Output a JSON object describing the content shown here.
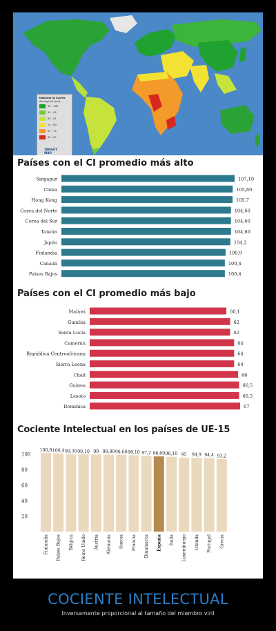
{
  "map_legend": {
    "title": "National IQ Scores",
    "subtitle": "Average IQ score",
    "ranges": [
      {
        "label": "95 - 108",
        "color": "#1fa22f"
      },
      {
        "label": "91 - 95",
        "color": "#6fce3a"
      },
      {
        "label": "83 - 91",
        "color": "#c6e33c"
      },
      {
        "label": "74 - 83",
        "color": "#f3e233"
      },
      {
        "label": "67 - 74",
        "color": "#f39a2a"
      },
      {
        "label": "59 - 67",
        "color": "#d62a1f"
      }
    ],
    "brand_line1": "TARGET",
    "brand_line2": "MAP"
  },
  "colors": {
    "ocean": "#4a88c8",
    "high_bar": "#2d7a8e",
    "low_bar": "#d2344a",
    "eu_bar": "#ead9bc",
    "eu_highlight": "#b58a4f"
  },
  "caption": {
    "title": "COCIENTE INTELECTUAL",
    "subtitle": "Inversamente proporcional al tamaño del miembro viril"
  },
  "chart_data": [
    {
      "type": "bar",
      "orientation": "horizontal",
      "title": "Países con el CI promedio más alto",
      "categories": [
        "Singapur",
        "China",
        "Hong Kong",
        "Corea del Norte",
        "Corea del Sur",
        "Taiwán",
        "Japón",
        "Finlandia",
        "Canadá",
        "Países Bajos"
      ],
      "values": [
        107.1,
        105.8,
        105.7,
        104.6,
        104.6,
        104.6,
        104.2,
        100.9,
        100.4,
        100.4
      ],
      "value_labels": [
        "107,10",
        "105,80",
        "105,7",
        "104,60",
        "104,60",
        "104,60",
        "104,2",
        "100,9",
        "100,4",
        "100,4"
      ]
    },
    {
      "type": "bar",
      "orientation": "horizontal",
      "title": "Países con el CI promedio más bajo",
      "categories": [
        "Malawi",
        "Gambia",
        "Santa Lucía",
        "Camerún",
        "República Centroafricana",
        "Sierra Leona",
        "Chad",
        "Guinea",
        "Lesoto",
        "Dominica"
      ],
      "values": [
        60.1,
        62,
        62,
        64,
        64,
        64,
        66,
        66.5,
        66.5,
        67
      ],
      "value_labels": [
        "60,1",
        "62",
        "62",
        "64",
        "64",
        "64",
        "66",
        "66,5",
        "66,5",
        "67"
      ]
    },
    {
      "type": "bar",
      "orientation": "vertical",
      "title": "Cociente Intelectual en los países de UE-15",
      "categories": [
        "Finlandia",
        "Países Bajos",
        "Bélgica",
        "Reino Unido",
        "Austria",
        "Alemania",
        "Suecia",
        "Francia",
        "Dinamarca",
        "España",
        "Italia",
        "Luxemburgo",
        "Irlanda",
        "Portugal",
        "Grecia"
      ],
      "values": [
        100.9,
        100.4,
        99.3,
        99.1,
        99,
        98.8,
        98.6,
        98.1,
        97.2,
        96.6,
        96.1,
        95,
        94.9,
        94.4,
        93.2
      ],
      "value_labels": [
        "100,9",
        "100,4",
        "99,30",
        "99,10",
        "99",
        "98,80",
        "98,60",
        "98,10",
        "97,2",
        "96,60",
        "96,10",
        "95",
        "94,9",
        "94,4",
        "93,2"
      ],
      "highlight": "España",
      "yticks": [
        20,
        40,
        60,
        80,
        100
      ],
      "ylim": [
        0,
        110
      ],
      "grid": false
    }
  ]
}
